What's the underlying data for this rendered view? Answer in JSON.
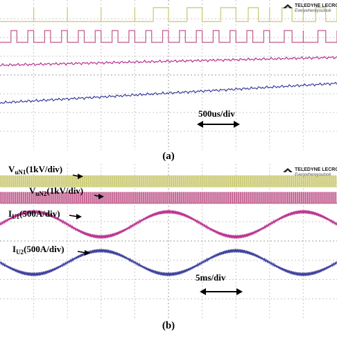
{
  "figure": {
    "caption_a": "(a)",
    "caption_b": "(b)"
  },
  "logo": {
    "brand": "TELEDYNE LECROY",
    "tagline": "Everywhereyoulook"
  },
  "colors": {
    "background": "#ffffff",
    "grid": "#c8c8c8",
    "center_axis": "#9a9a9a",
    "v_un1": "#c8c86e",
    "v_un2": "#c0578a",
    "i_u1": "#b8308e",
    "i_u2": "#3b3d9b"
  },
  "chart_data": [
    {
      "type": "line",
      "panel": "(a)",
      "timebase": "500us/div",
      "grid": true,
      "divisions_x": 10,
      "divisions_y": 8,
      "series": [
        {
          "key": "v_un1",
          "kind": "pulse",
          "pulses_per_div": [
            0.5,
            0.5,
            0.5,
            0.5,
            1,
            1,
            1,
            1.5,
            1.5,
            1.5
          ],
          "duty": 0.45
        },
        {
          "key": "v_un2",
          "kind": "pulse",
          "pulses_per_div": [
            2,
            2,
            2,
            2,
            2,
            2,
            2,
            2,
            1.5,
            1.5
          ],
          "duty": 0.35
        },
        {
          "key": "i_u1",
          "kind": "ramp",
          "start_div": 2.2,
          "end_div": 2.9,
          "ripple": true
        },
        {
          "key": "i_u2",
          "kind": "ramp",
          "start_div": 4.6,
          "end_div": 3.0,
          "ripple": true
        }
      ]
    },
    {
      "type": "line",
      "panel": "(b)",
      "timebase": "5ms/div",
      "grid": true,
      "divisions_x": 10,
      "divisions_y": 8,
      "series": [
        {
          "key": "v_un1",
          "label_main": "V",
          "label_sub": "uN1",
          "label_rest": "(1kV/div)",
          "kind": "pwm"
        },
        {
          "key": "v_un2",
          "label_main": "V",
          "label_sub": "uN2",
          "label_rest": "(1kV/div)",
          "kind": "pwm"
        },
        {
          "key": "i_u1",
          "label_main": "I",
          "label_sub": "U1",
          "label_rest": "(500A/div)",
          "kind": "sine",
          "periods_per_screen": 2.5,
          "amplitude_div": 0.55,
          "phase": 0
        },
        {
          "key": "i_u2",
          "label_main": "I",
          "label_sub": "U2",
          "label_rest": "(500A/div)",
          "kind": "sine",
          "periods_per_screen": 2.5,
          "amplitude_div": 0.55,
          "phase": 3.14159
        }
      ]
    }
  ]
}
